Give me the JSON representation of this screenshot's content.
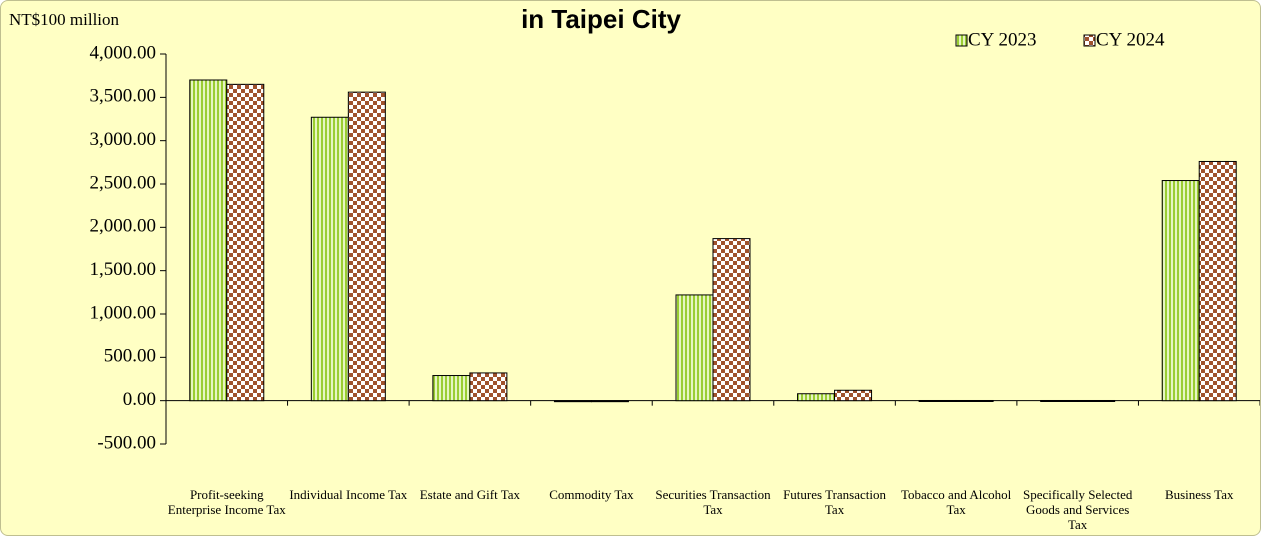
{
  "chart_data": {
    "type": "bar",
    "title": "in Taipei City",
    "ylabel": "NT$100 million",
    "categories": [
      "Profit-seeking Enterprise Income Tax",
      "Individual Income Tax",
      "Estate and Gift Tax",
      "Commodity Tax",
      "Securities Transaction Tax",
      "Futures Transaction Tax",
      "Tobacco and Alcohol Tax",
      "Specifically Selected Goods and Services Tax",
      "Business Tax"
    ],
    "series": [
      {
        "name": "CY 2023",
        "color": "#9acd32",
        "values": [
          3700,
          3270,
          290,
          -5,
          1220,
          80,
          2,
          2,
          2540
        ]
      },
      {
        "name": "CY 2024",
        "color": "#a0522d",
        "values": [
          3650,
          3560,
          320,
          -5,
          1870,
          120,
          2,
          2,
          2760
        ]
      }
    ],
    "ylim": [
      -500,
      4000
    ],
    "yticks": [
      {
        "value": -500,
        "label": "-500.00"
      },
      {
        "value": 0,
        "label": "0.00"
      },
      {
        "value": 500,
        "label": "500.00"
      },
      {
        "value": 1000,
        "label": "1,000.00"
      },
      {
        "value": 1500,
        "label": "1,500.00"
      },
      {
        "value": 2000,
        "label": "2,000.00"
      },
      {
        "value": 2500,
        "label": "2,500.00"
      },
      {
        "value": 3000,
        "label": "3,000.00"
      },
      {
        "value": 3500,
        "label": "3,500.00"
      },
      {
        "value": 4000,
        "label": "4,000.00"
      }
    ],
    "legend": "upper right"
  }
}
